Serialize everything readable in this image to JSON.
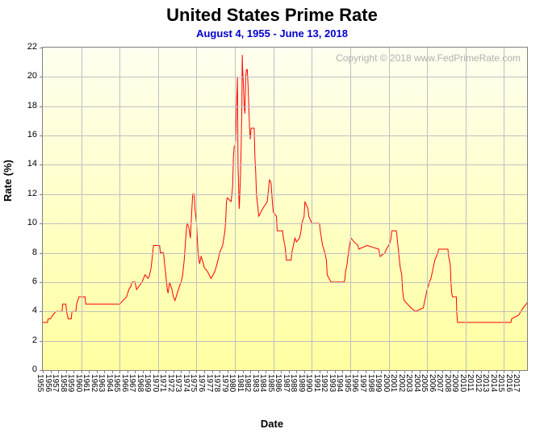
{
  "chart": {
    "type": "line",
    "title": "United States Prime Rate",
    "subtitle": "August 4, 1955 - June 13, 2018",
    "watermark": "Copyright © 2018 www.FedPrimeRate.com",
    "xlabel": "Date",
    "ylabel": "Rate (%)",
    "title_fontsize": 22,
    "subtitle_fontsize": 13,
    "subtitle_color": "#0000cc",
    "label_fontsize": 13,
    "tick_fontsize": 11,
    "line_color": "#ff0000",
    "line_width": 1,
    "grid_color": "#c0c0c0",
    "border_color": "#808080",
    "background_gradient_top": "#fffff0",
    "background_gradient_bottom": "#ffffa0",
    "watermark_color": "#b0b0b0",
    "xlim": [
      1955,
      2018
    ],
    "ylim": [
      0,
      22
    ],
    "ytick_step": 2,
    "yticks": [
      0,
      2,
      4,
      6,
      8,
      10,
      12,
      14,
      16,
      18,
      20,
      22
    ],
    "xticks": [
      1955,
      1956,
      1957,
      1958,
      1959,
      1960,
      1961,
      1962,
      1963,
      1964,
      1965,
      1966,
      1967,
      1968,
      1969,
      1970,
      1971,
      1972,
      1973,
      1974,
      1975,
      1976,
      1977,
      1978,
      1979,
      1980,
      1981,
      1982,
      1983,
      1984,
      1985,
      1986,
      1987,
      1988,
      1989,
      1990,
      1991,
      1992,
      1993,
      1994,
      1995,
      1996,
      1997,
      1998,
      1999,
      2000,
      2001,
      2002,
      2003,
      2004,
      2005,
      2006,
      2007,
      2008,
      2009,
      2010,
      2011,
      2012,
      2013,
      2014,
      2015,
      2016,
      2017
    ],
    "data": [
      {
        "x": 1955.0,
        "y": 3.25
      },
      {
        "x": 1955.6,
        "y": 3.25
      },
      {
        "x": 1955.7,
        "y": 3.5
      },
      {
        "x": 1956.0,
        "y": 3.5
      },
      {
        "x": 1956.3,
        "y": 3.75
      },
      {
        "x": 1956.7,
        "y": 4.0
      },
      {
        "x": 1957.5,
        "y": 4.0
      },
      {
        "x": 1957.6,
        "y": 4.5
      },
      {
        "x": 1958.0,
        "y": 4.5
      },
      {
        "x": 1958.1,
        "y": 4.0
      },
      {
        "x": 1958.3,
        "y": 3.5
      },
      {
        "x": 1958.7,
        "y": 3.5
      },
      {
        "x": 1958.8,
        "y": 4.0
      },
      {
        "x": 1959.3,
        "y": 4.0
      },
      {
        "x": 1959.4,
        "y": 4.5
      },
      {
        "x": 1959.7,
        "y": 5.0
      },
      {
        "x": 1960.5,
        "y": 5.0
      },
      {
        "x": 1960.6,
        "y": 4.5
      },
      {
        "x": 1965.0,
        "y": 4.5
      },
      {
        "x": 1965.9,
        "y": 5.0
      },
      {
        "x": 1966.2,
        "y": 5.5
      },
      {
        "x": 1966.5,
        "y": 5.75
      },
      {
        "x": 1966.6,
        "y": 6.0
      },
      {
        "x": 1967.0,
        "y": 6.0
      },
      {
        "x": 1967.1,
        "y": 5.75
      },
      {
        "x": 1967.2,
        "y": 5.5
      },
      {
        "x": 1967.9,
        "y": 6.0
      },
      {
        "x": 1968.3,
        "y": 6.5
      },
      {
        "x": 1968.7,
        "y": 6.25
      },
      {
        "x": 1968.9,
        "y": 6.5
      },
      {
        "x": 1969.0,
        "y": 6.75
      },
      {
        "x": 1969.1,
        "y": 7.0
      },
      {
        "x": 1969.2,
        "y": 7.5
      },
      {
        "x": 1969.4,
        "y": 8.5
      },
      {
        "x": 1970.2,
        "y": 8.5
      },
      {
        "x": 1970.3,
        "y": 8.0
      },
      {
        "x": 1970.7,
        "y": 8.0
      },
      {
        "x": 1970.8,
        "y": 7.5
      },
      {
        "x": 1970.9,
        "y": 7.0
      },
      {
        "x": 1971.0,
        "y": 6.5
      },
      {
        "x": 1971.1,
        "y": 6.0
      },
      {
        "x": 1971.2,
        "y": 5.5
      },
      {
        "x": 1971.3,
        "y": 5.25
      },
      {
        "x": 1971.5,
        "y": 6.0
      },
      {
        "x": 1971.8,
        "y": 5.5
      },
      {
        "x": 1972.0,
        "y": 5.0
      },
      {
        "x": 1972.2,
        "y": 4.75
      },
      {
        "x": 1972.5,
        "y": 5.25
      },
      {
        "x": 1972.8,
        "y": 5.75
      },
      {
        "x": 1973.0,
        "y": 6.0
      },
      {
        "x": 1973.2,
        "y": 6.5
      },
      {
        "x": 1973.4,
        "y": 7.5
      },
      {
        "x": 1973.6,
        "y": 9.0
      },
      {
        "x": 1973.7,
        "y": 9.75
      },
      {
        "x": 1973.8,
        "y": 10.0
      },
      {
        "x": 1974.0,
        "y": 9.75
      },
      {
        "x": 1974.2,
        "y": 9.0
      },
      {
        "x": 1974.3,
        "y": 10.0
      },
      {
        "x": 1974.4,
        "y": 11.0
      },
      {
        "x": 1974.5,
        "y": 12.0
      },
      {
        "x": 1974.7,
        "y": 12.0
      },
      {
        "x": 1974.8,
        "y": 11.0
      },
      {
        "x": 1975.0,
        "y": 10.0
      },
      {
        "x": 1975.2,
        "y": 8.0
      },
      {
        "x": 1975.4,
        "y": 7.25
      },
      {
        "x": 1975.6,
        "y": 7.75
      },
      {
        "x": 1975.9,
        "y": 7.25
      },
      {
        "x": 1976.0,
        "y": 7.0
      },
      {
        "x": 1976.4,
        "y": 6.75
      },
      {
        "x": 1976.9,
        "y": 6.25
      },
      {
        "x": 1977.4,
        "y": 6.75
      },
      {
        "x": 1977.8,
        "y": 7.5
      },
      {
        "x": 1978.0,
        "y": 8.0
      },
      {
        "x": 1978.4,
        "y": 8.5
      },
      {
        "x": 1978.7,
        "y": 9.5
      },
      {
        "x": 1978.8,
        "y": 10.25
      },
      {
        "x": 1978.9,
        "y": 11.5
      },
      {
        "x": 1979.0,
        "y": 11.75
      },
      {
        "x": 1979.5,
        "y": 11.5
      },
      {
        "x": 1979.7,
        "y": 12.5
      },
      {
        "x": 1979.8,
        "y": 14.5
      },
      {
        "x": 1979.9,
        "y": 15.25
      },
      {
        "x": 1980.0,
        "y": 15.25
      },
      {
        "x": 1980.1,
        "y": 15.75
      },
      {
        "x": 1980.2,
        "y": 18.0
      },
      {
        "x": 1980.3,
        "y": 19.5
      },
      {
        "x": 1980.32,
        "y": 20.0
      },
      {
        "x": 1980.35,
        "y": 18.0
      },
      {
        "x": 1980.4,
        "y": 14.0
      },
      {
        "x": 1980.5,
        "y": 12.0
      },
      {
        "x": 1980.55,
        "y": 11.0
      },
      {
        "x": 1980.6,
        "y": 11.5
      },
      {
        "x": 1980.7,
        "y": 13.0
      },
      {
        "x": 1980.8,
        "y": 15.0
      },
      {
        "x": 1980.9,
        "y": 18.0
      },
      {
        "x": 1980.95,
        "y": 21.5
      },
      {
        "x": 1981.0,
        "y": 20.5
      },
      {
        "x": 1981.1,
        "y": 19.5
      },
      {
        "x": 1981.2,
        "y": 18.0
      },
      {
        "x": 1981.3,
        "y": 17.5
      },
      {
        "x": 1981.4,
        "y": 20.0
      },
      {
        "x": 1981.5,
        "y": 20.5
      },
      {
        "x": 1981.6,
        "y": 20.5
      },
      {
        "x": 1981.7,
        "y": 19.5
      },
      {
        "x": 1981.8,
        "y": 18.0
      },
      {
        "x": 1981.9,
        "y": 16.5
      },
      {
        "x": 1982.0,
        "y": 15.75
      },
      {
        "x": 1982.1,
        "y": 16.5
      },
      {
        "x": 1982.5,
        "y": 16.5
      },
      {
        "x": 1982.6,
        "y": 14.5
      },
      {
        "x": 1982.7,
        "y": 13.5
      },
      {
        "x": 1982.8,
        "y": 12.0
      },
      {
        "x": 1982.9,
        "y": 11.5
      },
      {
        "x": 1983.0,
        "y": 11.0
      },
      {
        "x": 1983.1,
        "y": 10.5
      },
      {
        "x": 1983.6,
        "y": 11.0
      },
      {
        "x": 1984.2,
        "y": 11.5
      },
      {
        "x": 1984.4,
        "y": 12.5
      },
      {
        "x": 1984.5,
        "y": 13.0
      },
      {
        "x": 1984.7,
        "y": 12.75
      },
      {
        "x": 1984.8,
        "y": 12.0
      },
      {
        "x": 1984.9,
        "y": 11.25
      },
      {
        "x": 1985.0,
        "y": 10.75
      },
      {
        "x": 1985.4,
        "y": 10.5
      },
      {
        "x": 1985.5,
        "y": 9.5
      },
      {
        "x": 1986.2,
        "y": 9.5
      },
      {
        "x": 1986.3,
        "y": 9.0
      },
      {
        "x": 1986.5,
        "y": 8.5
      },
      {
        "x": 1986.6,
        "y": 8.0
      },
      {
        "x": 1986.7,
        "y": 7.5
      },
      {
        "x": 1987.3,
        "y": 7.5
      },
      {
        "x": 1987.4,
        "y": 8.0
      },
      {
        "x": 1987.7,
        "y": 8.75
      },
      {
        "x": 1987.8,
        "y": 9.0
      },
      {
        "x": 1988.0,
        "y": 8.75
      },
      {
        "x": 1988.4,
        "y": 9.0
      },
      {
        "x": 1988.6,
        "y": 9.5
      },
      {
        "x": 1988.7,
        "y": 10.0
      },
      {
        "x": 1989.0,
        "y": 10.5
      },
      {
        "x": 1989.1,
        "y": 11.5
      },
      {
        "x": 1989.5,
        "y": 11.0
      },
      {
        "x": 1989.6,
        "y": 10.5
      },
      {
        "x": 1990.0,
        "y": 10.0
      },
      {
        "x": 1991.0,
        "y": 10.0
      },
      {
        "x": 1991.1,
        "y": 9.5
      },
      {
        "x": 1991.4,
        "y": 8.5
      },
      {
        "x": 1991.7,
        "y": 8.0
      },
      {
        "x": 1991.9,
        "y": 7.5
      },
      {
        "x": 1992.0,
        "y": 6.5
      },
      {
        "x": 1992.5,
        "y": 6.0
      },
      {
        "x": 1994.2,
        "y": 6.0
      },
      {
        "x": 1994.3,
        "y": 6.25
      },
      {
        "x": 1994.4,
        "y": 6.75
      },
      {
        "x": 1994.6,
        "y": 7.25
      },
      {
        "x": 1994.7,
        "y": 7.75
      },
      {
        "x": 1994.9,
        "y": 8.5
      },
      {
        "x": 1995.1,
        "y": 9.0
      },
      {
        "x": 1995.5,
        "y": 8.75
      },
      {
        "x": 1996.0,
        "y": 8.5
      },
      {
        "x": 1996.1,
        "y": 8.25
      },
      {
        "x": 1997.2,
        "y": 8.5
      },
      {
        "x": 1998.7,
        "y": 8.25
      },
      {
        "x": 1998.8,
        "y": 8.0
      },
      {
        "x": 1998.9,
        "y": 7.75
      },
      {
        "x": 1999.5,
        "y": 8.0
      },
      {
        "x": 1999.7,
        "y": 8.25
      },
      {
        "x": 2000.0,
        "y": 8.5
      },
      {
        "x": 2000.2,
        "y": 8.75
      },
      {
        "x": 2000.3,
        "y": 9.0
      },
      {
        "x": 2000.4,
        "y": 9.5
      },
      {
        "x": 2001.0,
        "y": 9.5
      },
      {
        "x": 2001.1,
        "y": 9.0
      },
      {
        "x": 2001.2,
        "y": 8.5
      },
      {
        "x": 2001.3,
        "y": 8.0
      },
      {
        "x": 2001.4,
        "y": 7.5
      },
      {
        "x": 2001.5,
        "y": 7.0
      },
      {
        "x": 2001.7,
        "y": 6.5
      },
      {
        "x": 2001.8,
        "y": 5.5
      },
      {
        "x": 2001.9,
        "y": 5.0
      },
      {
        "x": 2002.0,
        "y": 4.75
      },
      {
        "x": 2002.9,
        "y": 4.25
      },
      {
        "x": 2003.5,
        "y": 4.0
      },
      {
        "x": 2004.5,
        "y": 4.25
      },
      {
        "x": 2004.7,
        "y": 4.75
      },
      {
        "x": 2004.9,
        "y": 5.25
      },
      {
        "x": 2005.0,
        "y": 5.5
      },
      {
        "x": 2005.3,
        "y": 6.0
      },
      {
        "x": 2005.5,
        "y": 6.25
      },
      {
        "x": 2005.7,
        "y": 6.75
      },
      {
        "x": 2005.9,
        "y": 7.25
      },
      {
        "x": 2006.0,
        "y": 7.5
      },
      {
        "x": 2006.2,
        "y": 7.75
      },
      {
        "x": 2006.4,
        "y": 8.0
      },
      {
        "x": 2006.5,
        "y": 8.25
      },
      {
        "x": 2007.7,
        "y": 8.25
      },
      {
        "x": 2007.8,
        "y": 7.75
      },
      {
        "x": 2007.9,
        "y": 7.5
      },
      {
        "x": 2008.0,
        "y": 7.25
      },
      {
        "x": 2008.1,
        "y": 6.0
      },
      {
        "x": 2008.2,
        "y": 5.25
      },
      {
        "x": 2008.3,
        "y": 5.0
      },
      {
        "x": 2008.8,
        "y": 5.0
      },
      {
        "x": 2008.85,
        "y": 4.0
      },
      {
        "x": 2008.95,
        "y": 3.25
      },
      {
        "x": 2015.9,
        "y": 3.25
      },
      {
        "x": 2016.0,
        "y": 3.5
      },
      {
        "x": 2016.9,
        "y": 3.75
      },
      {
        "x": 2017.2,
        "y": 4.0
      },
      {
        "x": 2017.5,
        "y": 4.25
      },
      {
        "x": 2017.9,
        "y": 4.5
      },
      {
        "x": 2018.2,
        "y": 4.75
      },
      {
        "x": 2018.4,
        "y": 5.0
      }
    ]
  }
}
